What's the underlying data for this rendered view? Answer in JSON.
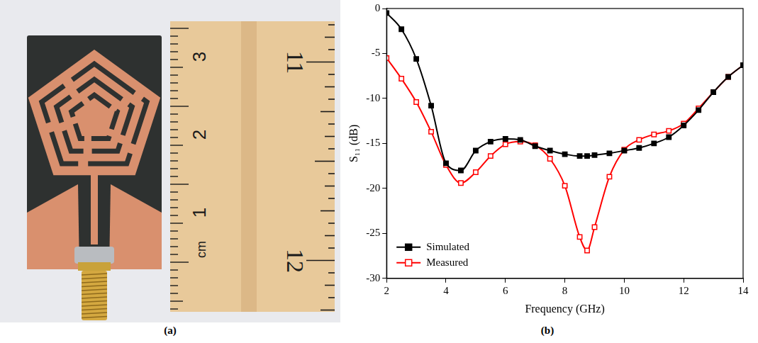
{
  "figure": {
    "panel_labels": [
      "(a)",
      "(b)"
    ]
  },
  "photo": {
    "ruler_cm_labels": [
      "3",
      "2",
      "1"
    ],
    "ruler_cm_unit": "cm",
    "ruler_inch_labels": [
      "11",
      "12"
    ]
  },
  "chart_data": {
    "type": "line",
    "x_label": "Frequency (GHz)",
    "y_label": "S₁₁ (dB)",
    "x": [
      2,
      2.5,
      3,
      3.5,
      4,
      4.5,
      5,
      5.5,
      6,
      6.5,
      7,
      7.5,
      8,
      8.5,
      8.75,
      9,
      9.5,
      10,
      10.5,
      11,
      11.5,
      12,
      12.5,
      13,
      13.5,
      14
    ],
    "xlim": [
      2,
      14
    ],
    "xticks": [
      2,
      4,
      6,
      8,
      10,
      12,
      14
    ],
    "ylim": [
      -30,
      0
    ],
    "yticks": [
      -30,
      -25,
      -20,
      -15,
      -10,
      -5,
      0
    ],
    "grid": false,
    "legend": "lower left",
    "series": [
      {
        "name": "Simulated",
        "color": "#000000",
        "marker": "square",
        "values": [
          -0.5,
          -2.3,
          -5.6,
          -10.8,
          -17.2,
          -18.0,
          -15.8,
          -14.8,
          -14.5,
          -14.6,
          -15.3,
          -15.8,
          -16.2,
          -16.4,
          -16.4,
          -16.3,
          -16.1,
          -15.8,
          -15.5,
          -15.0,
          -14.3,
          -13.0,
          -11.3,
          -9.3,
          -7.6,
          -6.3
        ]
      },
      {
        "name": "Measured",
        "color": "#ff0000",
        "marker": "open_square",
        "values": [
          -5.5,
          -7.8,
          -10.4,
          -13.7,
          -17.4,
          -19.4,
          -18.2,
          -16.4,
          -15.1,
          -14.8,
          -15.2,
          -16.7,
          -19.7,
          -25.4,
          -26.9,
          -24.3,
          -18.7,
          -15.7,
          -14.6,
          -14.0,
          -13.6,
          -12.8,
          -11.1,
          -9.3,
          -7.6,
          -6.3
        ]
      }
    ]
  }
}
